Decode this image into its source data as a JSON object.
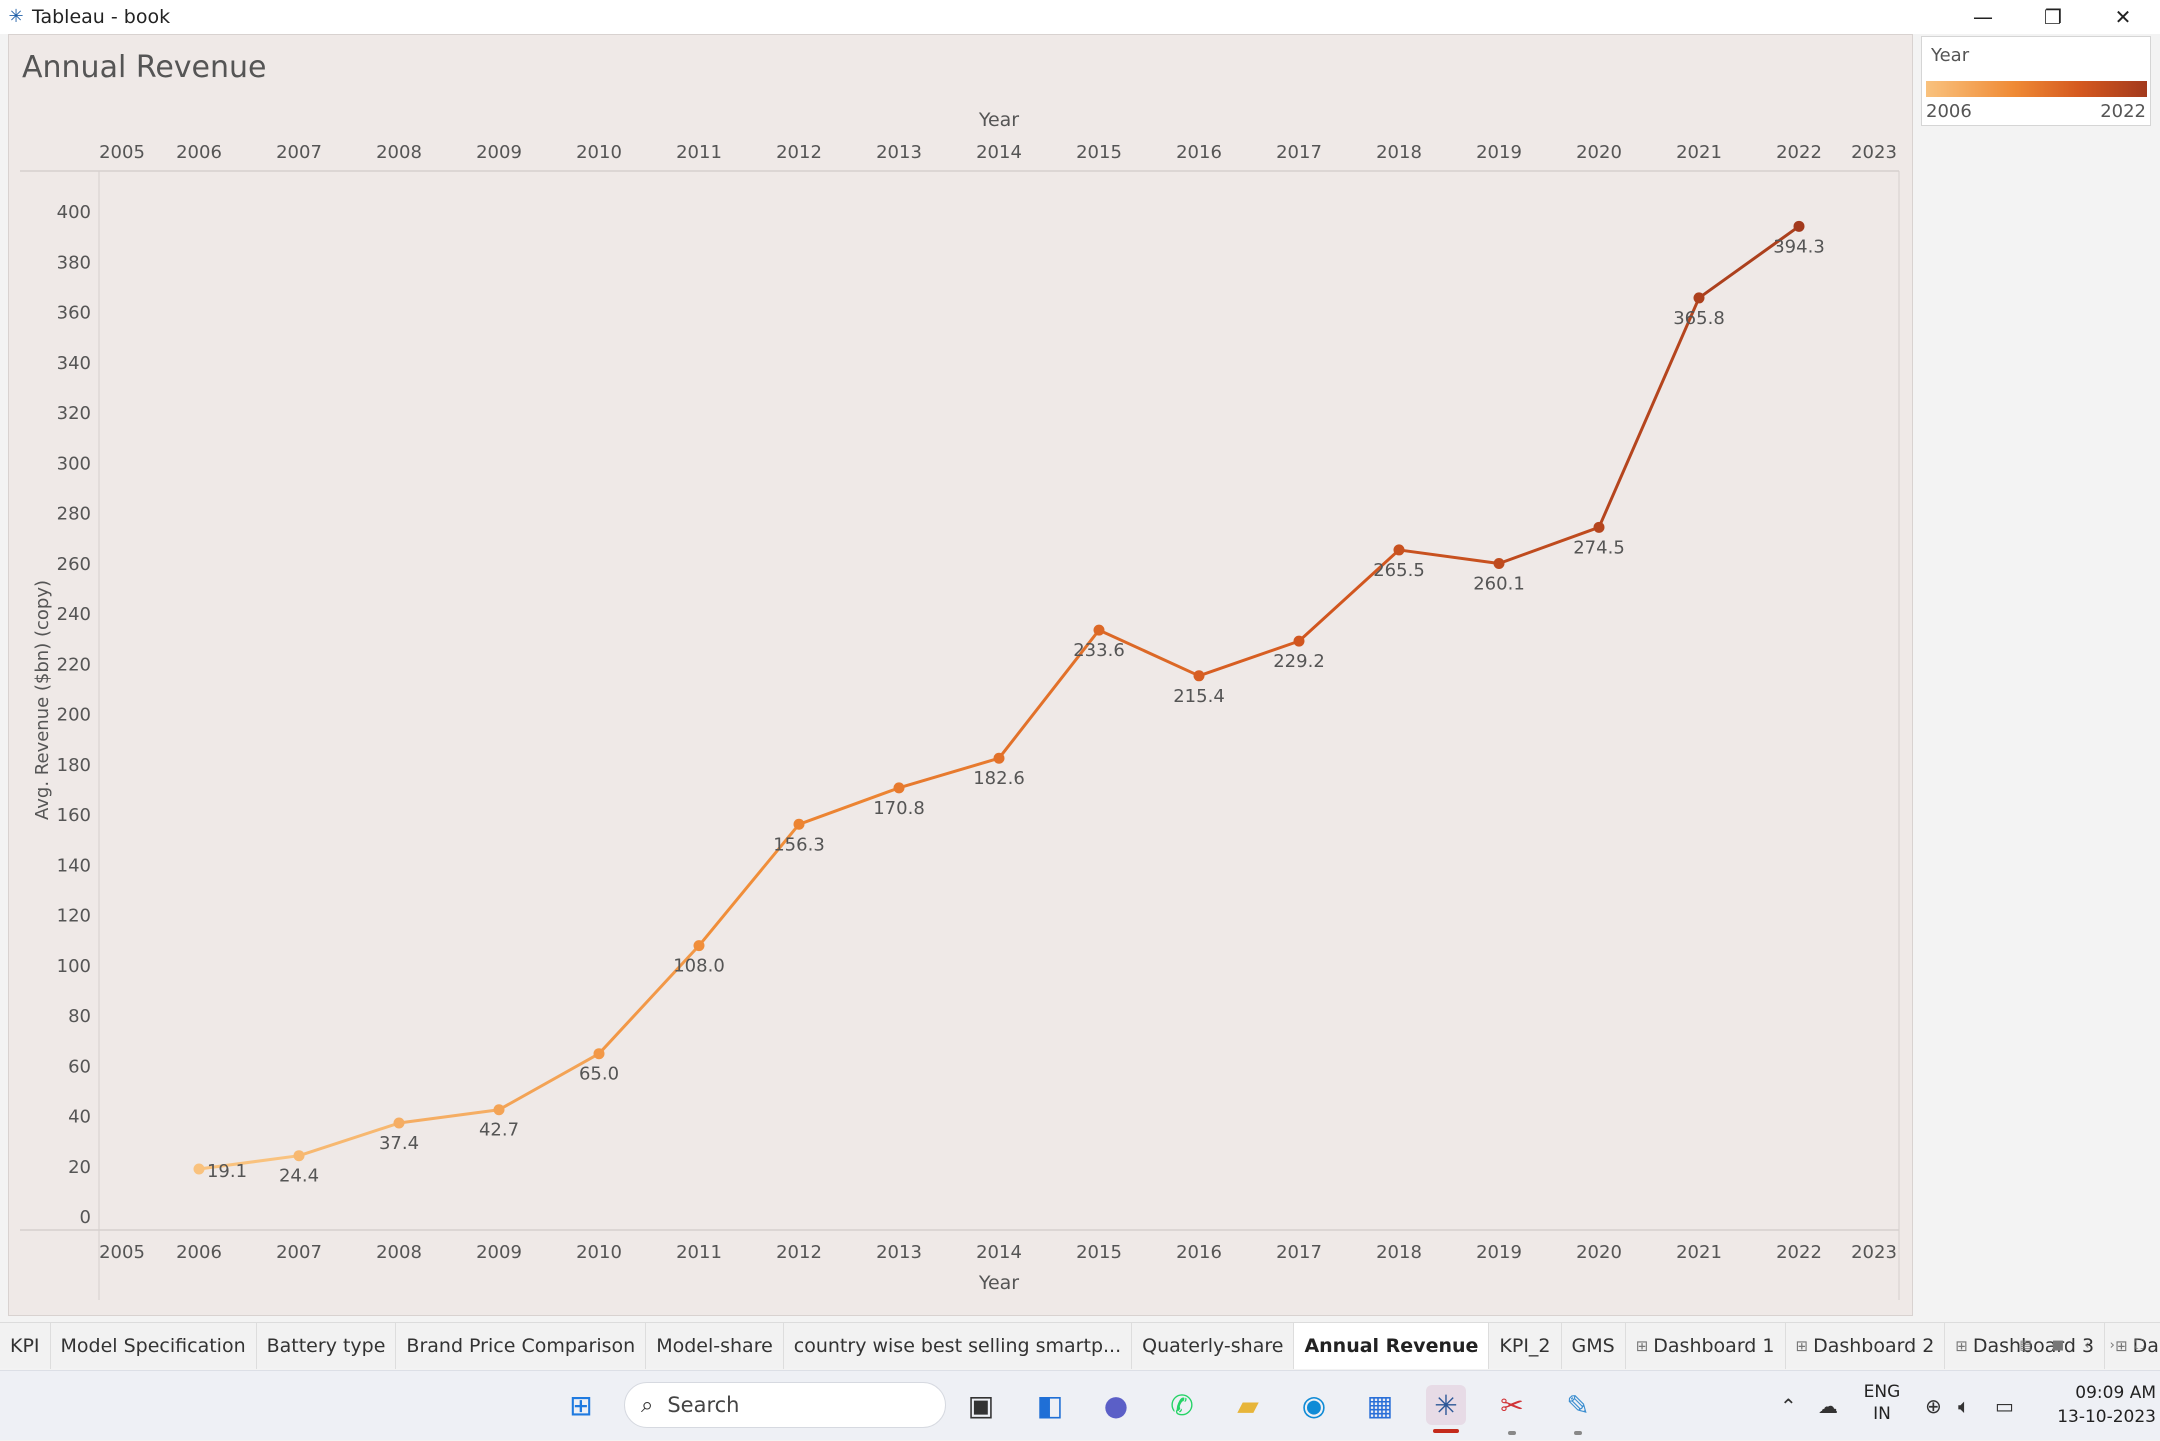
{
  "window": {
    "title": "Tableau - book",
    "minimize_label": "—",
    "restore_label": "❐",
    "close_label": "✕"
  },
  "sheet": {
    "title": "Annual Revenue"
  },
  "legend": {
    "title": "Year",
    "min_label": "2006",
    "max_label": "2022",
    "colors": [
      "#f9c27e",
      "#ef8a35",
      "#d4581f",
      "#a33a1d"
    ]
  },
  "chart_data": {
    "type": "line",
    "x_axis_title": "Year",
    "y_axis_title": "Avg. Revenue ($bn) (copy)",
    "x_ticks": [
      "2005",
      "2006",
      "2007",
      "2008",
      "2009",
      "2010",
      "2011",
      "2012",
      "2013",
      "2014",
      "2015",
      "2016",
      "2017",
      "2018",
      "2019",
      "2020",
      "2021",
      "2022",
      "2023"
    ],
    "y_ticks": [
      0,
      20,
      40,
      60,
      80,
      100,
      120,
      140,
      160,
      180,
      200,
      220,
      240,
      260,
      280,
      300,
      320,
      340,
      360,
      380,
      400
    ],
    "xlim": [
      2005,
      2023
    ],
    "ylim": [
      0,
      400
    ],
    "x": [
      2006,
      2007,
      2008,
      2009,
      2010,
      2011,
      2012,
      2013,
      2014,
      2015,
      2016,
      2017,
      2018,
      2019,
      2020,
      2021,
      2022
    ],
    "values": [
      19.1,
      24.4,
      37.4,
      42.7,
      65.0,
      108.0,
      156.3,
      170.8,
      182.6,
      233.6,
      215.4,
      229.2,
      265.5,
      260.1,
      274.5,
      365.8,
      394.3
    ],
    "labels": [
      "19.1",
      "24.4",
      "37.4",
      "42.7",
      "65.0",
      "108.0",
      "156.3",
      "170.8",
      "182.6",
      "233.6",
      "215.4",
      "229.2",
      "265.5",
      "260.1",
      "274.5",
      "365.8",
      "394.3"
    ],
    "color_scale": [
      "#f9c27e",
      "#ef8a35",
      "#d4581f",
      "#a33a1d"
    ],
    "grid": false,
    "legend_position": "top-right"
  },
  "tabs": [
    {
      "label": "KPI",
      "active": false,
      "dashboard": false
    },
    {
      "label": "Model Specification",
      "active": false,
      "dashboard": false
    },
    {
      "label": "Battery type",
      "active": false,
      "dashboard": false
    },
    {
      "label": "Brand Price Comparison",
      "active": false,
      "dashboard": false
    },
    {
      "label": "Model-share",
      "active": false,
      "dashboard": false
    },
    {
      "label": "country wise best selling smartp...",
      "active": false,
      "dashboard": false
    },
    {
      "label": "Quaterly-share",
      "active": false,
      "dashboard": false
    },
    {
      "label": "Annual Revenue",
      "active": true,
      "dashboard": false
    },
    {
      "label": "KPI_2",
      "active": false,
      "dashboard": false
    },
    {
      "label": "GMS",
      "active": false,
      "dashboard": false
    },
    {
      "label": "Dashboard 1",
      "active": false,
      "dashboard": true
    },
    {
      "label": "Dashboard 2",
      "active": false,
      "dashboard": true
    },
    {
      "label": "Dashboard 3",
      "active": false,
      "dashboard": true
    },
    {
      "label": "Dashboard",
      "active": false,
      "dashboard": true
    }
  ],
  "taskbar": {
    "search_placeholder": "Search",
    "language_top": "ENG",
    "language_bottom": "IN",
    "time": "09:09 AM",
    "date": "13-10-2023"
  }
}
